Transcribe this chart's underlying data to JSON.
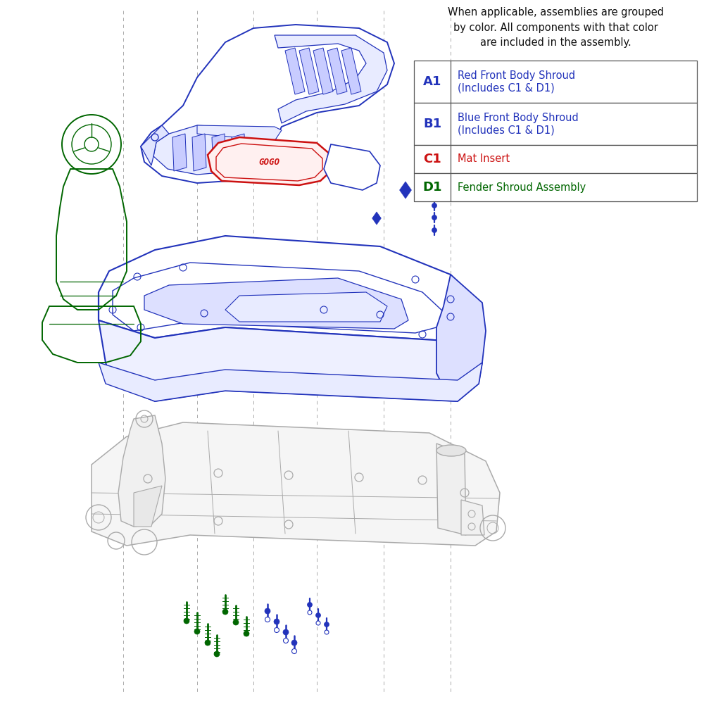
{
  "bg": "#ffffff",
  "blue": "#2233bb",
  "red": "#cc1111",
  "green": "#006600",
  "gray": "#aaaaaa",
  "dgray": "#888888",
  "header": "When applicable, assemblies are grouped\nby color. All components with that color\nare included in the assembly.",
  "legend": [
    {
      "code": "A1",
      "text": "Red Front Body Shroud\n(Includes C1 & D1)",
      "col": "#2233bb"
    },
    {
      "code": "B1",
      "text": "Blue Front Body Shroud\n(Includes C1 & D1)",
      "col": "#2233bb"
    },
    {
      "code": "C1",
      "text": "Mat Insert",
      "col": "#cc1111"
    },
    {
      "code": "D1",
      "text": "Fender Shroud Assembly",
      "col": "#006600"
    }
  ]
}
